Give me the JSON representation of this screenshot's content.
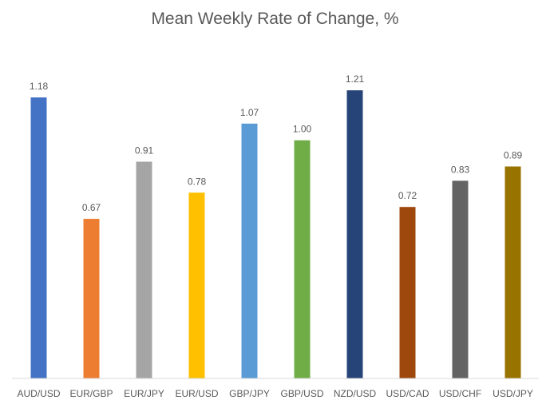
{
  "chart_data": {
    "type": "bar",
    "title": "Mean Weekly Rate of Change, %",
    "xlabel": "",
    "ylabel": "",
    "categories": [
      "AUD/USD",
      "EUR/GBP",
      "EUR/JPY",
      "EUR/USD",
      "GBP/JPY",
      "GBP/USD",
      "NZD/USD",
      "USD/CAD",
      "USD/CHF",
      "USD/JPY"
    ],
    "values": [
      1.18,
      0.67,
      0.91,
      0.78,
      1.07,
      1.0,
      1.21,
      0.72,
      0.83,
      0.89
    ],
    "value_labels": [
      "1.18",
      "0.67",
      "0.91",
      "0.78",
      "1.07",
      "1.00",
      "1.21",
      "0.72",
      "0.83",
      "0.89"
    ],
    "colors": [
      "#4472C4",
      "#ED7D31",
      "#A5A5A5",
      "#FFC000",
      "#5B9BD5",
      "#70AD47",
      "#264478",
      "#9E480E",
      "#636363",
      "#997300"
    ],
    "ylim": [
      0,
      1.4
    ],
    "grid": false,
    "legend": "none"
  }
}
